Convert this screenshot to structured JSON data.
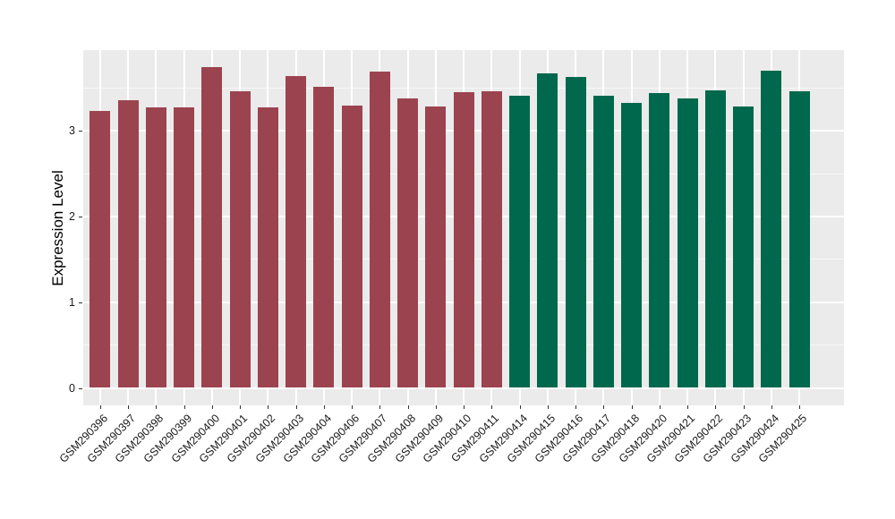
{
  "chart_data": {
    "type": "bar",
    "title": "",
    "xlabel": "",
    "ylabel": "Expression Level",
    "ylim": [
      0,
      3.95
    ],
    "yticks": [
      "0",
      "1",
      "2",
      "3"
    ],
    "yminor": [
      0.5,
      1.5,
      2.5,
      3.5
    ],
    "grid": "white major and minor gridlines on gray panel",
    "legend_position": "none",
    "categories": [
      "GSM290396",
      "GSM290397",
      "GSM290398",
      "GSM290399",
      "GSM290400",
      "GSM290401",
      "GSM290402",
      "GSM290403",
      "GSM290404",
      "GSM290406",
      "GSM290407",
      "GSM290408",
      "GSM290409",
      "GSM290410",
      "GSM290411",
      "GSM290414",
      "GSM290415",
      "GSM290416",
      "GSM290417",
      "GSM290418",
      "GSM290420",
      "GSM290421",
      "GSM290422",
      "GSM290423",
      "GSM290424",
      "GSM290425"
    ],
    "values": [
      3.23,
      3.36,
      3.28,
      3.28,
      3.75,
      3.46,
      3.28,
      3.64,
      3.52,
      3.3,
      3.7,
      3.38,
      3.29,
      3.45,
      3.46,
      3.41,
      3.67,
      3.63,
      3.41,
      3.33,
      3.44,
      3.38,
      3.48,
      3.29,
      3.71,
      3.46
    ],
    "bar_colors": [
      "#9C4350",
      "#9C4350",
      "#9C4350",
      "#9C4350",
      "#9C4350",
      "#9C4350",
      "#9C4350",
      "#9C4350",
      "#9C4350",
      "#9C4350",
      "#9C4350",
      "#9C4350",
      "#9C4350",
      "#9C4350",
      "#9C4350",
      "#00684C",
      "#00684C",
      "#00684C",
      "#00684C",
      "#00684C",
      "#00684C",
      "#00684C",
      "#00684C",
      "#00684C",
      "#00684C",
      "#00684C"
    ],
    "group_colors": {
      "group1": "#9C4350",
      "group2": "#00684C"
    }
  }
}
